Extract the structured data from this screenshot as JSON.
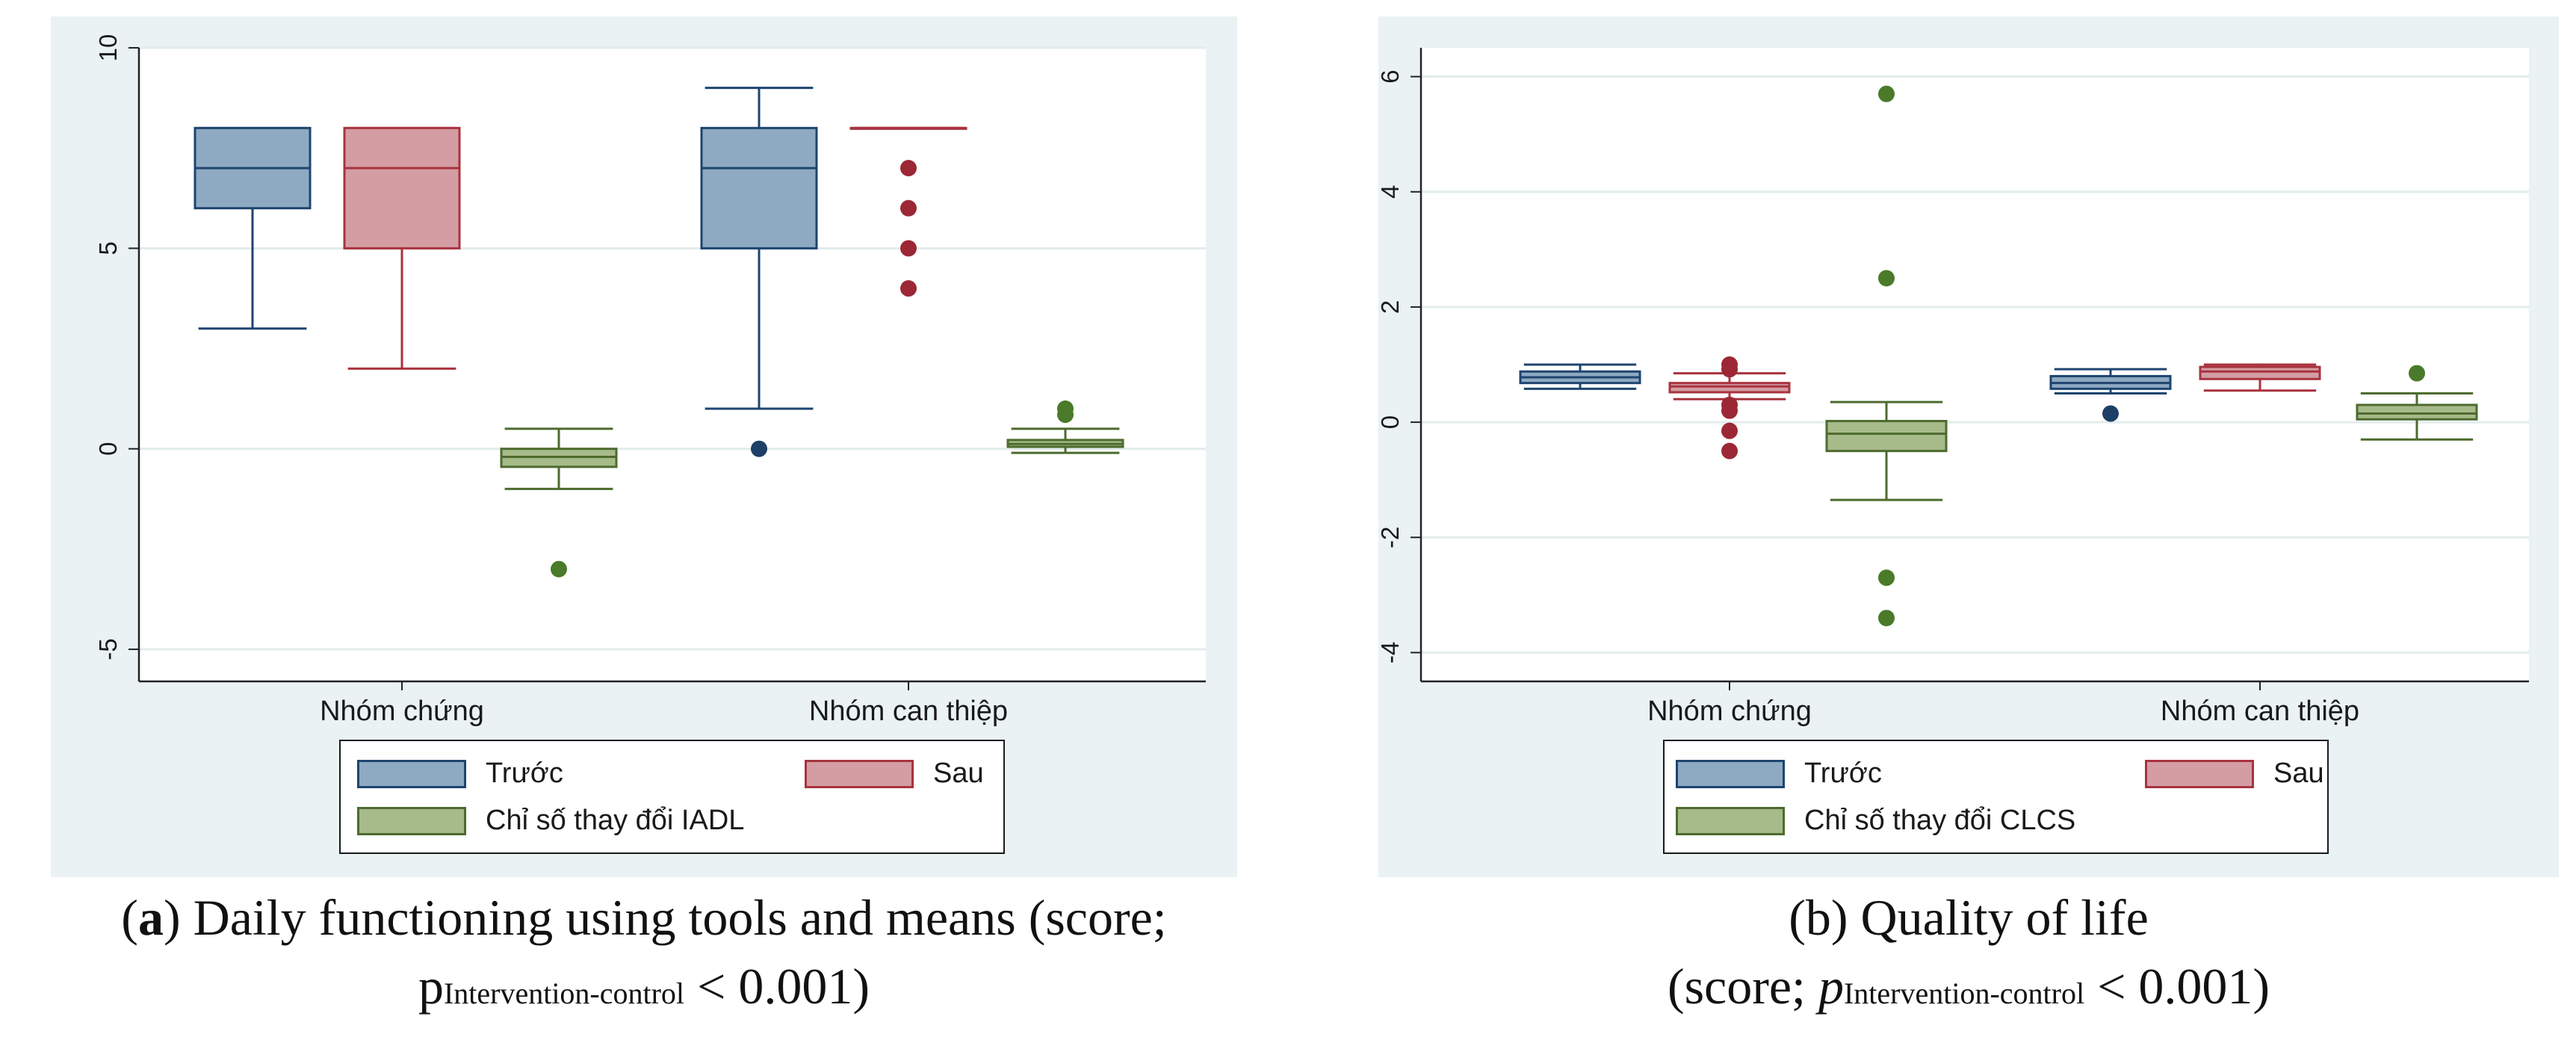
{
  "colors": {
    "before": "#8ea9c2",
    "before_edge": "#1e4470",
    "before_point": "#1e3f66",
    "after": "#d49da3",
    "after_edge": "#a8333f",
    "after_point": "#9b2834",
    "change": "#a7ba8a",
    "change_edge": "#4d6b2e",
    "change_point": "#4a7a2a",
    "panel_bg": "#eaf2f3",
    "grid": "#e2ecec"
  },
  "chart_data": [
    {
      "id": "a",
      "type": "box",
      "ylim": [
        -5.8,
        10
      ],
      "yticks": [
        -5,
        0,
        5,
        10
      ],
      "ytick_labels": [
        "-5",
        "0",
        "5",
        "10"
      ],
      "grid": true,
      "groups": [
        "Nhóm chứng",
        "Nhóm can thiệp"
      ],
      "legend": {
        "before": "Trước",
        "after": "Sau",
        "change": "Chỉ số thay đổi IADL"
      },
      "boxes": [
        {
          "group": 0,
          "series": "before",
          "q1": 6,
          "median": 7,
          "q3": 8,
          "low": 3,
          "high": 8,
          "outliers": []
        },
        {
          "group": 0,
          "series": "after",
          "q1": 5,
          "median": 7,
          "q3": 8,
          "low": 2,
          "high": 8,
          "outliers": []
        },
        {
          "group": 0,
          "series": "change",
          "q1": -0.45,
          "median": -0.2,
          "q3": 0,
          "low": -1,
          "high": 0.5,
          "outliers": [
            -3
          ]
        },
        {
          "group": 1,
          "series": "before",
          "q1": 5,
          "median": 7,
          "q3": 8,
          "low": 1,
          "high": 9,
          "outliers": [
            0
          ]
        },
        {
          "group": 1,
          "series": "after",
          "q1": 8,
          "median": 8,
          "q3": 8,
          "low": 8,
          "high": 8,
          "outliers": [
            7,
            6,
            5,
            4
          ]
        },
        {
          "group": 1,
          "series": "change",
          "q1": 0.05,
          "median": 0.12,
          "q3": 0.22,
          "low": -0.1,
          "high": 0.5,
          "outliers": [
            1,
            0.85
          ]
        }
      ],
      "caption": {
        "label": "a",
        "text": "Daily functioning using tools and means (score;",
        "p": "p",
        "sub": "Intervention-control",
        "tail": "< 0.001)"
      }
    },
    {
      "id": "b",
      "type": "box",
      "ylim": [
        -4.5,
        6.5
      ],
      "yticks": [
        -4,
        -2,
        0,
        2,
        4,
        6
      ],
      "ytick_labels": [
        "-4",
        "-2",
        "0",
        "2",
        "4",
        "6"
      ],
      "grid": true,
      "groups": [
        "Nhóm chứng",
        "Nhóm can thiệp"
      ],
      "legend": {
        "before": "Trước",
        "after": "Sau",
        "change": "Chỉ số thay đổi CLCS"
      },
      "boxes": [
        {
          "group": 0,
          "series": "before",
          "q1": 0.68,
          "median": 0.78,
          "q3": 0.88,
          "low": 0.58,
          "high": 1.0,
          "outliers": []
        },
        {
          "group": 0,
          "series": "after",
          "q1": 0.52,
          "median": 0.62,
          "q3": 0.68,
          "low": 0.4,
          "high": 0.85,
          "outliers": [
            1.0,
            0.92,
            0.3,
            0.2,
            -0.15,
            -0.5
          ]
        },
        {
          "group": 0,
          "series": "change",
          "q1": -0.5,
          "median": -0.2,
          "q3": 0.02,
          "low": -1.35,
          "high": 0.35,
          "outliers": [
            5.7,
            2.5,
            -2.7,
            -3.4
          ]
        },
        {
          "group": 1,
          "series": "before",
          "q1": 0.58,
          "median": 0.68,
          "q3": 0.8,
          "low": 0.5,
          "high": 0.92,
          "outliers": [
            0.15
          ]
        },
        {
          "group": 1,
          "series": "after",
          "q1": 0.75,
          "median": 0.88,
          "q3": 0.96,
          "low": 0.55,
          "high": 1.0,
          "outliers": []
        },
        {
          "group": 1,
          "series": "change",
          "q1": 0.05,
          "median": 0.15,
          "q3": 0.3,
          "low": -0.3,
          "high": 0.5,
          "outliers": [
            0.85
          ]
        }
      ],
      "caption": {
        "label": "b",
        "text": "Quality of life",
        "line2_open": "(score;",
        "p": "p",
        "sub": "Intervention-control",
        "tail": "< 0.001)"
      }
    }
  ]
}
